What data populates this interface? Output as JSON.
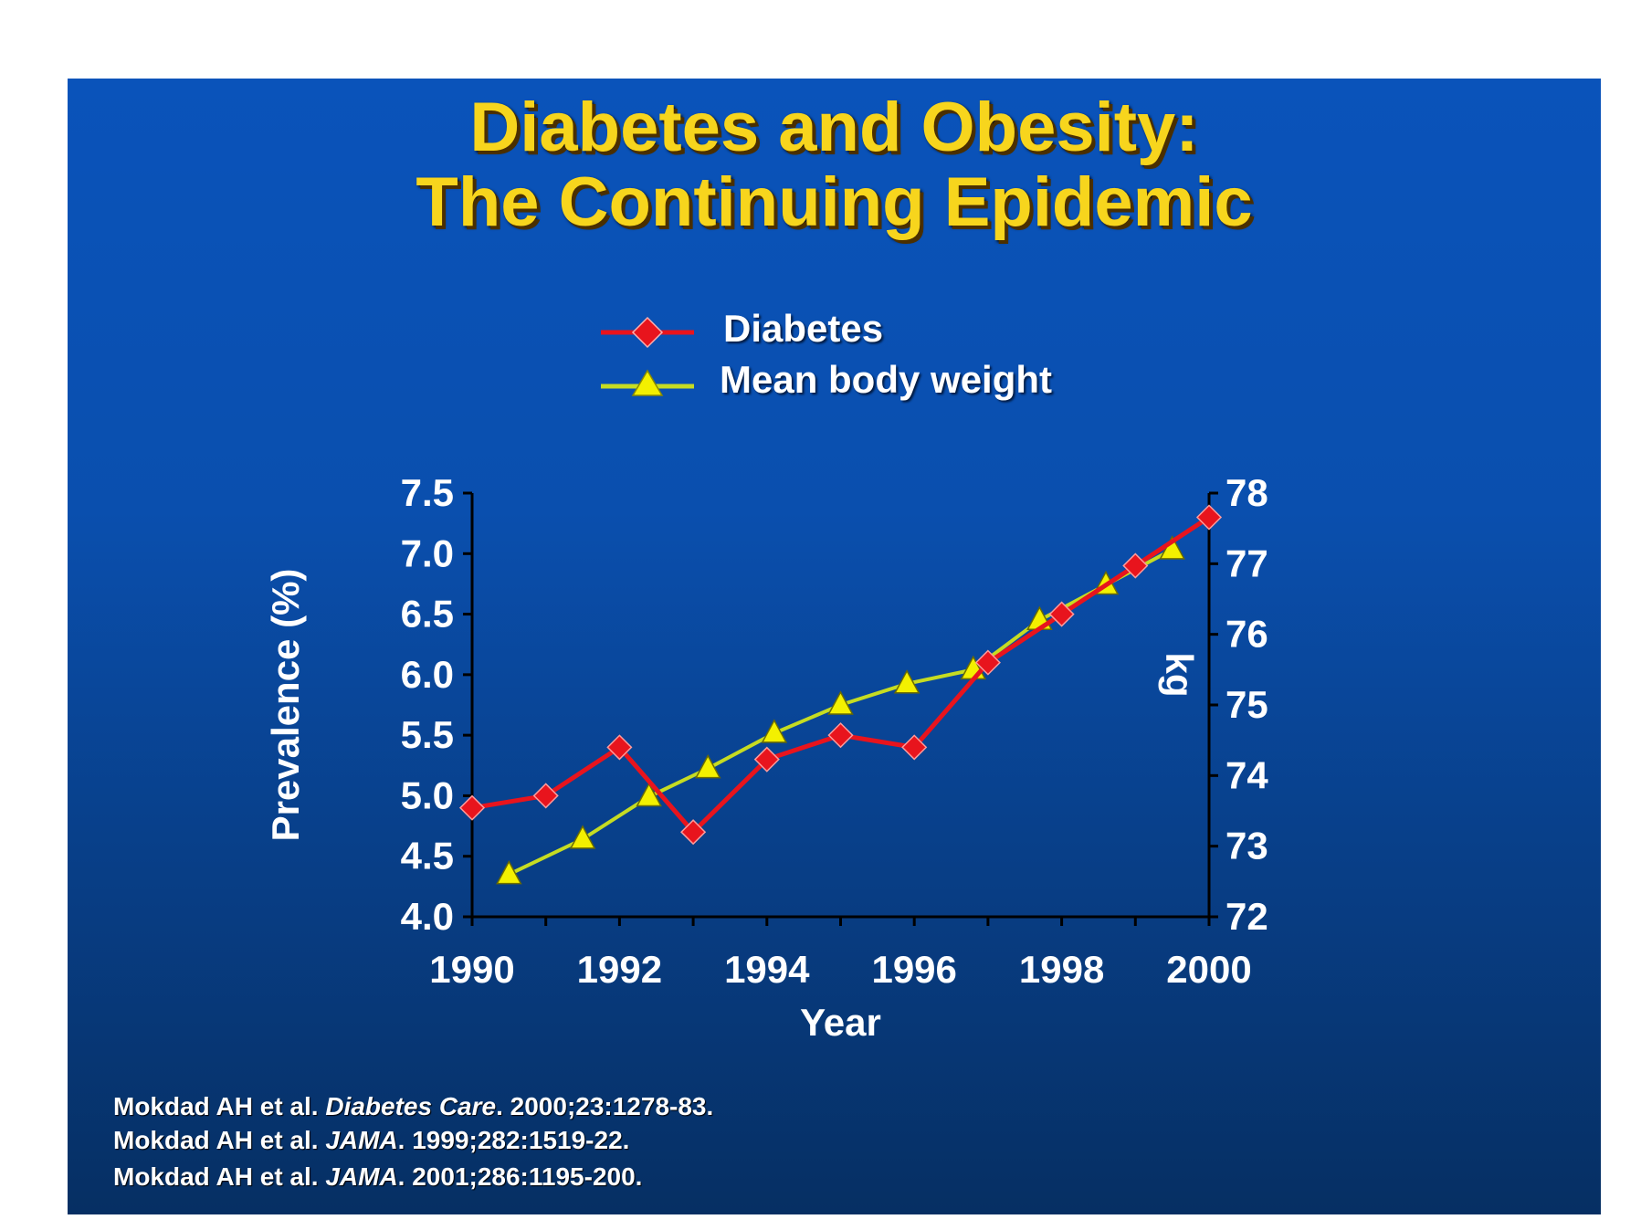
{
  "title_line1": "Diabetes and Obesity:",
  "title_line2": "The Continuing Epidemic",
  "colors": {
    "background_top": "#0a53ba",
    "background_bottom": "#062f63",
    "title": "#f7d51d",
    "diabetes": "#e8141d",
    "weight_line": "#c6dc22",
    "weight_marker": "#f3f000"
  },
  "legend": [
    {
      "label": "Diabetes",
      "marker": "diamond",
      "color": "#e8141d"
    },
    {
      "label": "Mean body weight",
      "marker": "triangle",
      "color": "#f3f000"
    }
  ],
  "chart_data": {
    "type": "line",
    "title": "Diabetes and Obesity: The Continuing Epidemic",
    "xlabel": "Year",
    "ylabel_left": "Prevalence (%)",
    "ylabel_right": "kg",
    "x_ticks": [
      "1990",
      "1992",
      "1994",
      "1996",
      "1998",
      "2000"
    ],
    "y_left_ticks": [
      "4.0",
      "4.5",
      "5.0",
      "5.5",
      "6.0",
      "6.5",
      "7.0",
      "7.5"
    ],
    "y_right_ticks": [
      "72",
      "73",
      "74",
      "75",
      "76",
      "77",
      "78"
    ],
    "xlim": [
      1990,
      2000
    ],
    "ylim_left": [
      4.0,
      7.5
    ],
    "ylim_right": [
      72,
      78
    ],
    "grid": false,
    "legend_position": "top-center",
    "series": [
      {
        "name": "Diabetes",
        "axis": "left",
        "x": [
          1990,
          1991,
          1992,
          1993,
          1994,
          1995,
          1996,
          1997,
          1998,
          1999,
          2000
        ],
        "values": [
          4.9,
          5.0,
          5.4,
          4.7,
          5.3,
          5.5,
          5.4,
          6.1,
          6.5,
          6.9,
          7.3
        ]
      },
      {
        "name": "Mean body weight",
        "axis": "right",
        "x": [
          1990.5,
          1991.5,
          1992.4,
          1993.2,
          1994.1,
          1995.0,
          1995.9,
          1996.8,
          1997.7,
          1998.6,
          1999.5
        ],
        "values": [
          72.6,
          73.1,
          73.7,
          74.1,
          74.6,
          75.0,
          75.3,
          75.5,
          76.2,
          76.7,
          77.2
        ]
      }
    ]
  },
  "footer": [
    {
      "prefix": "Mokdad AH et al. ",
      "journal": "Diabetes Care",
      "suffix": ". 2000;23:1278-83."
    },
    {
      "prefix": "Mokdad AH et al. ",
      "journal": "JAMA",
      "suffix": ". 1999;282:1519-22."
    },
    {
      "prefix": "Mokdad AH et al. ",
      "journal": "JAMA",
      "suffix": ". 2001;286:1195-200."
    }
  ]
}
